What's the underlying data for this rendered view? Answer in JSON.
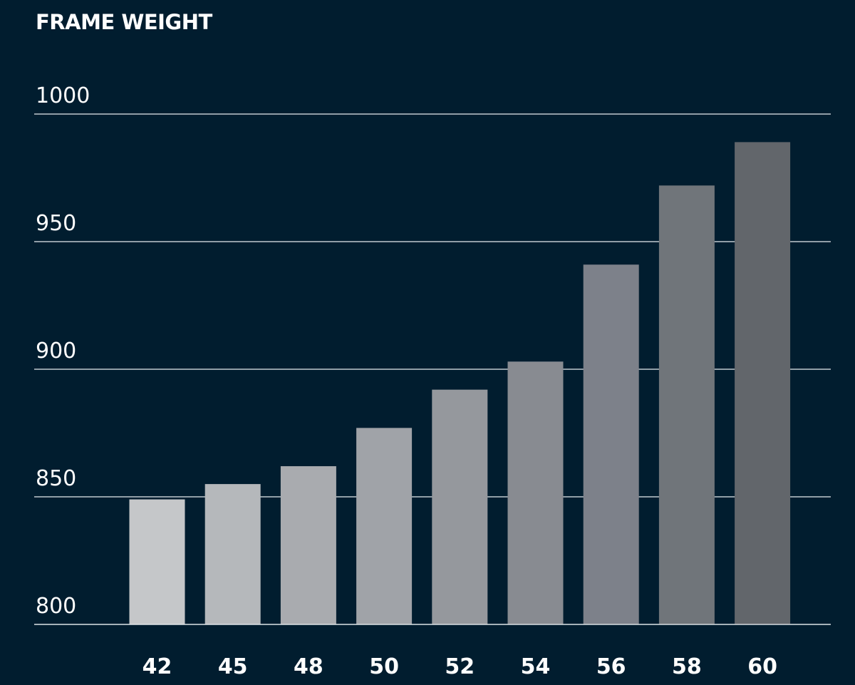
{
  "chart_data": {
    "type": "bar",
    "title": "FRAME WEIGHT",
    "xlabel": "",
    "ylabel": "",
    "categories": [
      "42",
      "45",
      "48",
      "50",
      "52",
      "54",
      "56",
      "58",
      "60"
    ],
    "values": [
      849,
      855,
      862,
      877,
      892,
      903,
      941,
      972,
      989
    ],
    "ylim": [
      800,
      1000
    ],
    "yticks": [
      800,
      850,
      900,
      950,
      1000
    ],
    "grid": true,
    "bar_colors": [
      "#c5c7c9",
      "#b5b8bb",
      "#a9abaf",
      "#a0a3a8",
      "#95989d",
      "#888b91",
      "#7d818a",
      "#70757a",
      "#62666b"
    ],
    "background": "#011d2f",
    "text_color": "#ffffff"
  }
}
